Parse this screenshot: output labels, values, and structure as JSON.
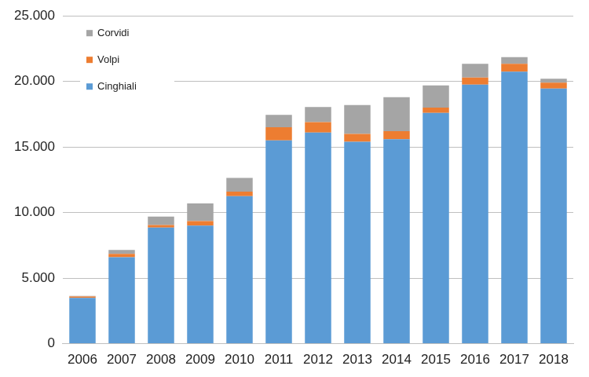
{
  "chart_data": {
    "type": "bar",
    "stacked": true,
    "grid": true,
    "legend": "top-left",
    "categories": [
      "2006",
      "2007",
      "2008",
      "2009",
      "2010",
      "2011",
      "2012",
      "2013",
      "2014",
      "2015",
      "2016",
      "2017",
      "2018"
    ],
    "series": [
      {
        "name": "Cinghiali",
        "color": "#5b9bd5",
        "values": [
          3500,
          6600,
          8850,
          9000,
          11250,
          15500,
          16100,
          15400,
          15600,
          17600,
          19750,
          20750,
          19450
        ]
      },
      {
        "name": "Volpi",
        "color": "#ed7d31",
        "values": [
          100,
          250,
          200,
          350,
          350,
          1000,
          800,
          600,
          600,
          400,
          550,
          600,
          450
        ]
      },
      {
        "name": "Corvidi",
        "color": "#a5a5a5",
        "values": [
          50,
          300,
          650,
          1350,
          1050,
          950,
          1150,
          2200,
          2600,
          1700,
          1050,
          500,
          300
        ]
      }
    ],
    "ylim": [
      0,
      25000
    ],
    "yticks": [
      0,
      {
        "value": 5000,
        "label": "5.000"
      },
      {
        "value": 10000,
        "label": "10.000"
      },
      {
        "value": 15000,
        "label": "15.000"
      },
      {
        "value": 20000,
        "label": "20.000"
      },
      {
        "value": 25000,
        "label": "25.000"
      }
    ]
  }
}
